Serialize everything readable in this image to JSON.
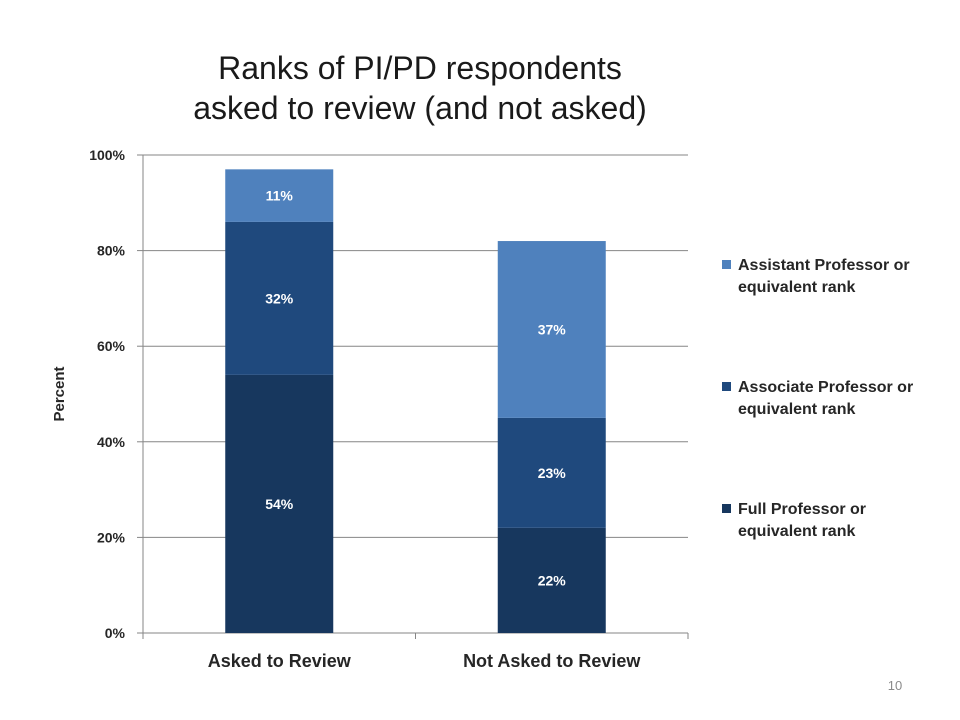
{
  "slide": {
    "title_lines": [
      "Ranks of PI/PD respondents",
      "asked to review (and not asked)"
    ],
    "page_number": "10"
  },
  "chart_data": {
    "type": "bar",
    "stacked": true,
    "categories": [
      "Asked to Review",
      "Not Asked to Review"
    ],
    "series": [
      {
        "name": "Full Professor or equivalent rank",
        "values": [
          54,
          22
        ],
        "labels": [
          "54%",
          "22%"
        ],
        "color": "#17375e"
      },
      {
        "name": "Associate Professor or equivalent rank",
        "values": [
          32,
          23
        ],
        "labels": [
          "32%",
          "23%"
        ],
        "color": "#1f497d"
      },
      {
        "name": "Assistant Professor or equivalent rank",
        "values": [
          11,
          37
        ],
        "labels": [
          "11%",
          "37%"
        ],
        "color": "#4f81bd"
      }
    ],
    "legend_order": [
      2,
      1,
      0
    ],
    "legend_lines": [
      [
        "Full Professor or",
        "equivalent rank"
      ],
      [
        "Associate Professor or",
        "equivalent rank"
      ],
      [
        "Assistant Professor or",
        "equivalent rank"
      ]
    ],
    "ylabel": "Percent",
    "xlabel": "",
    "ylim": [
      0,
      100
    ],
    "yticks": [
      0,
      20,
      40,
      60,
      80,
      100
    ],
    "ytick_labels": [
      "0%",
      "20%",
      "40%",
      "60%",
      "80%",
      "100%"
    ],
    "grid": true,
    "legend_position": "right",
    "label_color": "#ffffff"
  }
}
